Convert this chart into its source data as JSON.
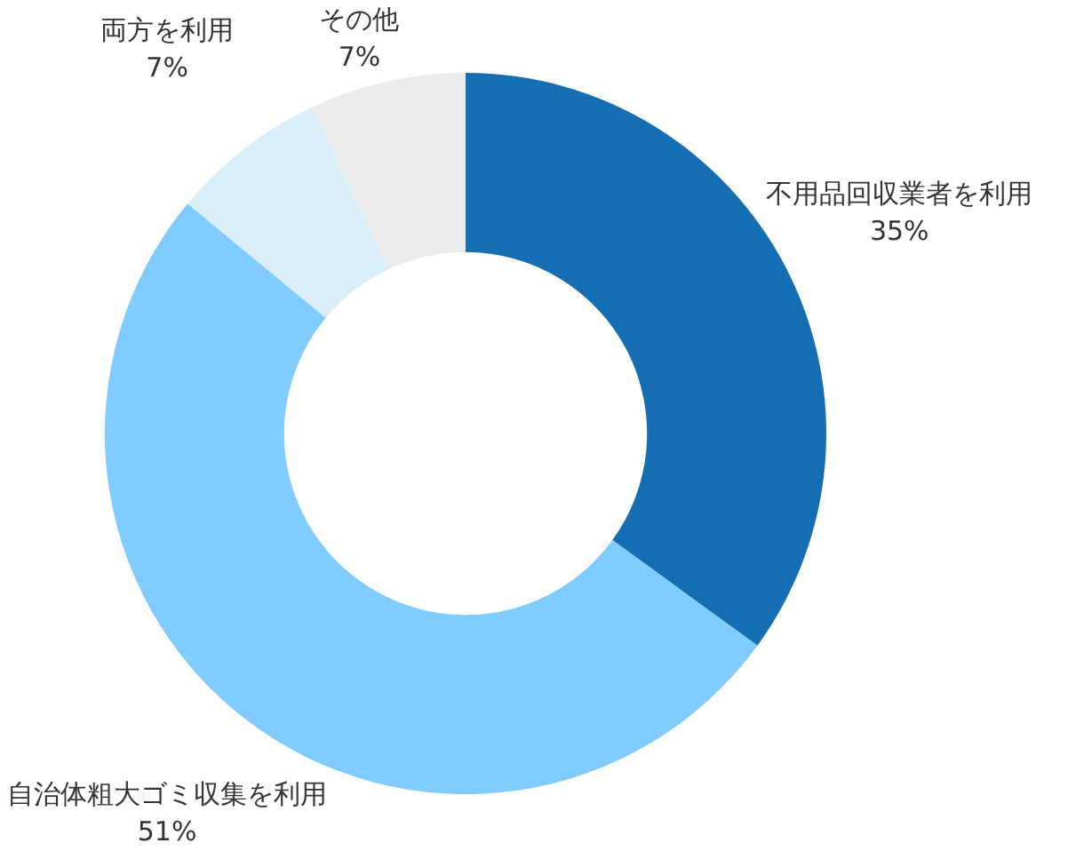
{
  "chart_data": {
    "type": "donut",
    "categories": [
      "不用品回収業者を利用",
      "自治体粗大ゴミ収集を利用",
      "両方を利用",
      "その他"
    ],
    "values": [
      35,
      51,
      7,
      7
    ],
    "colors": [
      "#156db2",
      "#80cbff",
      "#daeefa",
      "#ebebeb"
    ],
    "value_labels": [
      "35%",
      "51%",
      "7%",
      "7%"
    ]
  }
}
